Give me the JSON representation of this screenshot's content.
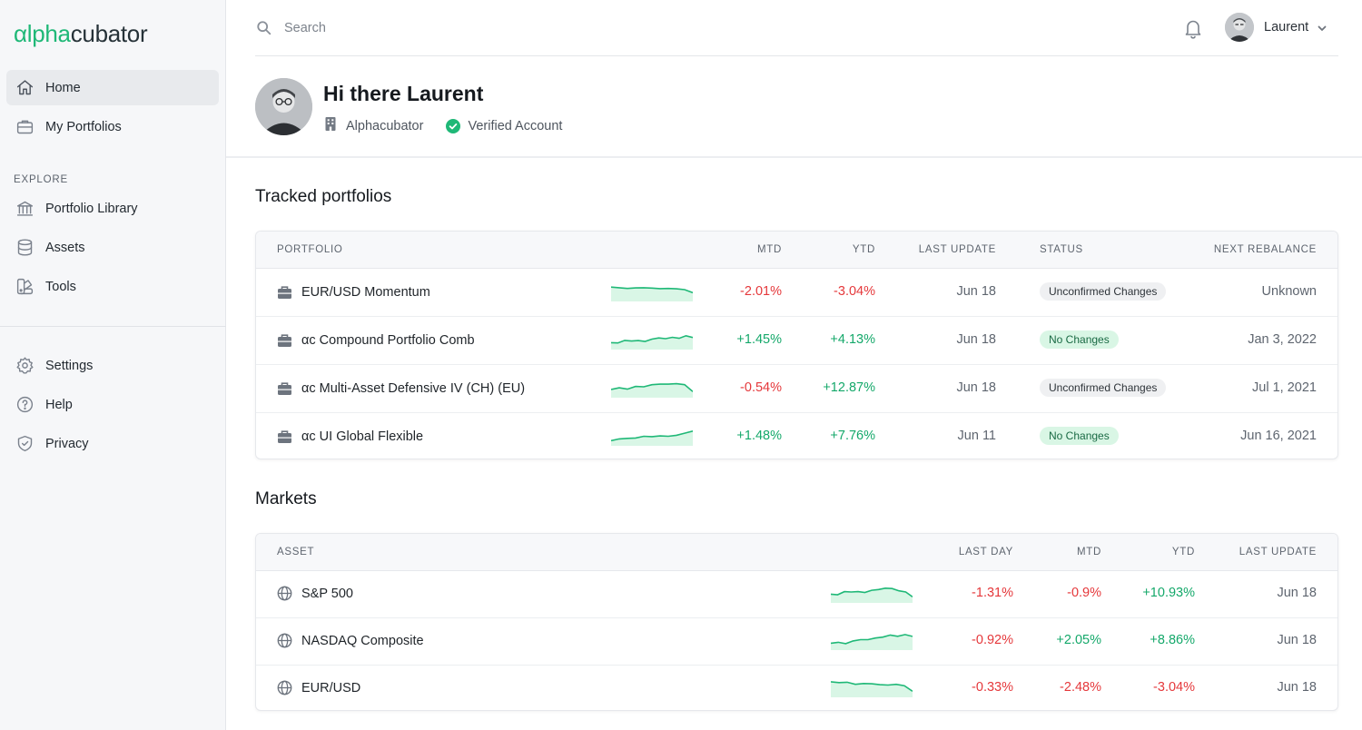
{
  "brand": {
    "logo_part1": "αlpha",
    "logo_part2": "cubator",
    "accent": "#1fb877"
  },
  "sidebar": {
    "main_items": [
      {
        "label": "Home",
        "icon": "home-icon",
        "active": true
      },
      {
        "label": "My Portfolios",
        "icon": "briefcase-icon",
        "active": false
      }
    ],
    "explore_label": "EXPLORE",
    "explore_items": [
      {
        "label": "Portfolio Library",
        "icon": "bank-icon"
      },
      {
        "label": "Assets",
        "icon": "database-icon"
      },
      {
        "label": "Tools",
        "icon": "tools-icon"
      }
    ],
    "bottom_items": [
      {
        "label": "Settings",
        "icon": "gear-icon"
      },
      {
        "label": "Help",
        "icon": "help-icon"
      },
      {
        "label": "Privacy",
        "icon": "shield-icon"
      }
    ]
  },
  "topbar": {
    "search_placeholder": "Search",
    "user_name": "Laurent"
  },
  "profile": {
    "greeting": "Hi there Laurent",
    "organization": "Alphacubator",
    "verification": "Verified Account"
  },
  "tracked": {
    "title": "Tracked portfolios",
    "headers": {
      "portfolio": "PORTFOLIO",
      "mtd": "MTD",
      "ytd": "YTD",
      "last_update": "LAST UPDATE",
      "status": "STATUS",
      "next_rebalance": "NEXT REBALANCE"
    },
    "rows": [
      {
        "name": "EUR/USD Momentum",
        "mtd": "-2.01%",
        "ytd": "-3.04%",
        "last_update": "Jun 18",
        "status": "Unconfirmed Changes",
        "status_kind": "grey",
        "next_rebalance": "Unknown",
        "spark": [
          0.78,
          0.74,
          0.7,
          0.73,
          0.74,
          0.72,
          0.69,
          0.7,
          0.68,
          0.63,
          0.45
        ]
      },
      {
        "name": "αc Compound Portfolio Comb",
        "mtd": "+1.45%",
        "ytd": "+4.13%",
        "last_update": "Jun 18",
        "status": "No Changes",
        "status_kind": "green",
        "next_rebalance": "Jan 3, 2022",
        "spark": [
          0.35,
          0.33,
          0.48,
          0.44,
          0.47,
          0.42,
          0.55,
          0.62,
          0.58,
          0.66,
          0.6,
          0.75,
          0.65
        ]
      },
      {
        "name": "αc Multi-Asset Defensive IV (CH) (EU)",
        "mtd": "-0.54%",
        "ytd": "+12.87%",
        "last_update": "Jun 18",
        "status": "Unconfirmed Changes",
        "status_kind": "grey",
        "next_rebalance": "Jul 1, 2021",
        "spark": [
          0.42,
          0.52,
          0.44,
          0.6,
          0.58,
          0.7,
          0.73,
          0.73,
          0.76,
          0.7,
          0.3
        ]
      },
      {
        "name": "αc UI Global Flexible",
        "mtd": "+1.48%",
        "ytd": "+7.76%",
        "last_update": "Jun 11",
        "status": "No Changes",
        "status_kind": "green",
        "next_rebalance": "Jun 16, 2021",
        "spark": [
          0.25,
          0.35,
          0.38,
          0.4,
          0.5,
          0.48,
          0.52,
          0.5,
          0.56,
          0.68,
          0.8
        ]
      }
    ]
  },
  "markets": {
    "title": "Markets",
    "headers": {
      "asset": "ASSET",
      "last_day": "LAST DAY",
      "mtd": "MTD",
      "ytd": "YTD",
      "last_update": "LAST UPDATE"
    },
    "rows": [
      {
        "name": "S&P 500",
        "last_day": "-1.31%",
        "mtd": "-0.9%",
        "ytd": "+10.93%",
        "last_update": "Jun 18",
        "spark": [
          0.45,
          0.42,
          0.6,
          0.58,
          0.6,
          0.55,
          0.68,
          0.72,
          0.8,
          0.78,
          0.65,
          0.58,
          0.3
        ]
      },
      {
        "name": "NASDAQ Composite",
        "last_day": "-0.92%",
        "mtd": "+2.05%",
        "ytd": "+8.86%",
        "last_update": "Jun 18",
        "spark": [
          0.35,
          0.4,
          0.32,
          0.48,
          0.55,
          0.55,
          0.65,
          0.7,
          0.82,
          0.75,
          0.85,
          0.74
        ]
      },
      {
        "name": "EUR/USD",
        "last_day": "-0.33%",
        "mtd": "-2.48%",
        "ytd": "-3.04%",
        "last_update": "Jun 18",
        "spark": [
          0.85,
          0.8,
          0.82,
          0.7,
          0.75,
          0.73,
          0.68,
          0.66,
          0.7,
          0.62,
          0.3
        ]
      }
    ]
  },
  "colors": {
    "negative": "#e5383b",
    "positive": "#14a86a",
    "spark_line": "#1fb877",
    "spark_fill": "#d9f6e6"
  }
}
